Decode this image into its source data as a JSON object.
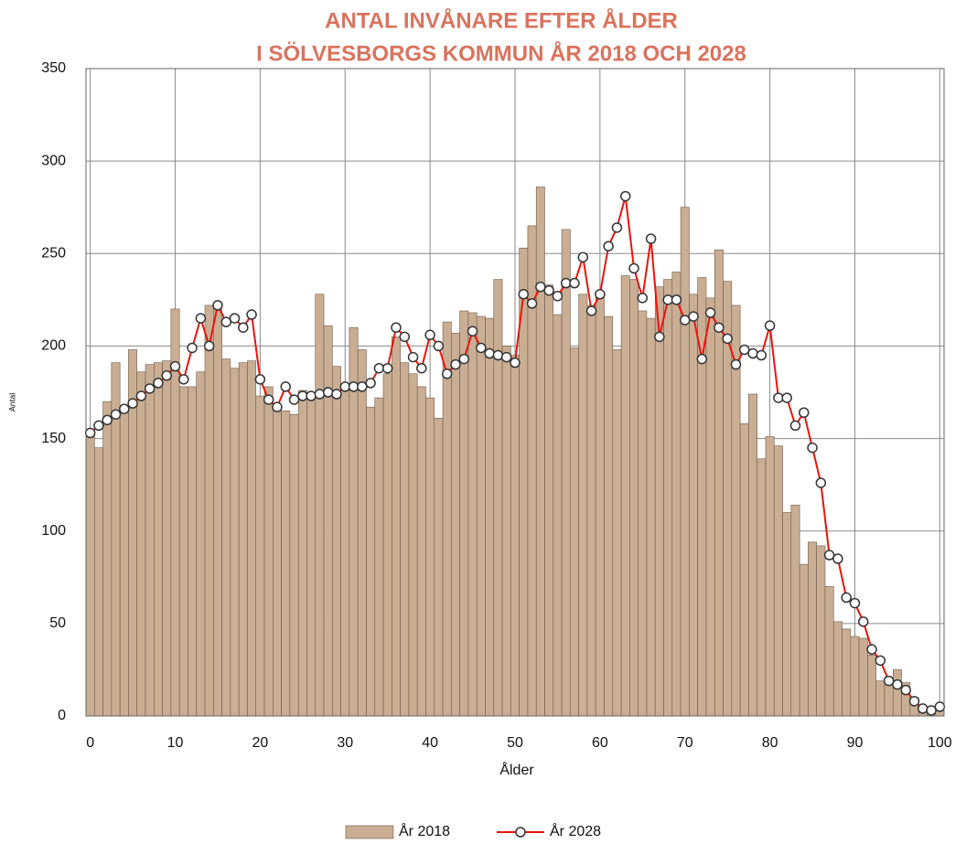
{
  "chart_data": {
    "type": "bar",
    "title": "ANTAL INVÅNARE EFTER ÅLDER",
    "subtitle": "I SÖLVESBORGS KOMMUN ÅR 2018 OCH 2028",
    "x_label": "Ålder",
    "y_label": "Antal",
    "x": [
      0,
      1,
      2,
      3,
      4,
      5,
      6,
      7,
      8,
      9,
      10,
      11,
      12,
      13,
      14,
      15,
      16,
      17,
      18,
      19,
      20,
      21,
      22,
      23,
      24,
      25,
      26,
      27,
      28,
      29,
      30,
      31,
      32,
      33,
      34,
      35,
      36,
      37,
      38,
      39,
      40,
      41,
      42,
      43,
      44,
      45,
      46,
      47,
      48,
      49,
      50,
      51,
      52,
      53,
      54,
      55,
      56,
      57,
      58,
      59,
      60,
      61,
      62,
      63,
      64,
      65,
      66,
      67,
      68,
      69,
      70,
      71,
      72,
      73,
      74,
      75,
      76,
      77,
      78,
      79,
      80,
      81,
      82,
      83,
      84,
      85,
      86,
      87,
      88,
      89,
      90,
      91,
      92,
      93,
      94,
      95,
      96,
      97,
      98,
      99,
      100
    ],
    "series": [
      {
        "name": "År 2018",
        "type": "bar",
        "color": "#c9ae94",
        "values": [
          153,
          145,
          170,
          191,
          165,
          198,
          186,
          190,
          191,
          192,
          220,
          178,
          178,
          186,
          222,
          222,
          193,
          188,
          191,
          192,
          173,
          178,
          168,
          165,
          163,
          176,
          172,
          228,
          211,
          189,
          178,
          210,
          198,
          167,
          172,
          185,
          205,
          191,
          185,
          178,
          172,
          161,
          213,
          207,
          219,
          218,
          216,
          215,
          236,
          200,
          195,
          253,
          265,
          286,
          233,
          217,
          263,
          199,
          228,
          222,
          227,
          216,
          198,
          238,
          236,
          219,
          215,
          232,
          236,
          240,
          275,
          228,
          237,
          226,
          252,
          235,
          222,
          158,
          174,
          139,
          151,
          146,
          110,
          114,
          82,
          94,
          92,
          70,
          51,
          47,
          43,
          42,
          33,
          19,
          21,
          25,
          18,
          10,
          5,
          3,
          4
        ]
      },
      {
        "name": "År 2028",
        "type": "line",
        "color": "#e8140e",
        "values": [
          153,
          157,
          160,
          163,
          166,
          169,
          173,
          177,
          180,
          184,
          189,
          182,
          199,
          215,
          200,
          222,
          213,
          215,
          210,
          217,
          182,
          171,
          167,
          178,
          171,
          173,
          173,
          174,
          175,
          174,
          178,
          178,
          178,
          180,
          188,
          188,
          210,
          205,
          194,
          188,
          206,
          200,
          185,
          190,
          193,
          208,
          199,
          196,
          195,
          194,
          191,
          228,
          223,
          232,
          230,
          227,
          234,
          234,
          248,
          219,
          228,
          254,
          264,
          281,
          242,
          226,
          258,
          205,
          225,
          225,
          214,
          216,
          193,
          218,
          210,
          204,
          190,
          198,
          196,
          195,
          211,
          172,
          172,
          157,
          164,
          145,
          126,
          87,
          85,
          64,
          61,
          51,
          36,
          30,
          19,
          17,
          14,
          8,
          4,
          3,
          5
        ]
      }
    ],
    "xlim": [
      -0.5,
      100.5
    ],
    "xticks": [
      0,
      10,
      20,
      30,
      40,
      50,
      60,
      70,
      80,
      90,
      100
    ],
    "ylim": [
      0,
      350
    ],
    "yticks": [
      0,
      50,
      100,
      150,
      200,
      250,
      300,
      350
    ],
    "grid": true,
    "legend": "bottom"
  }
}
